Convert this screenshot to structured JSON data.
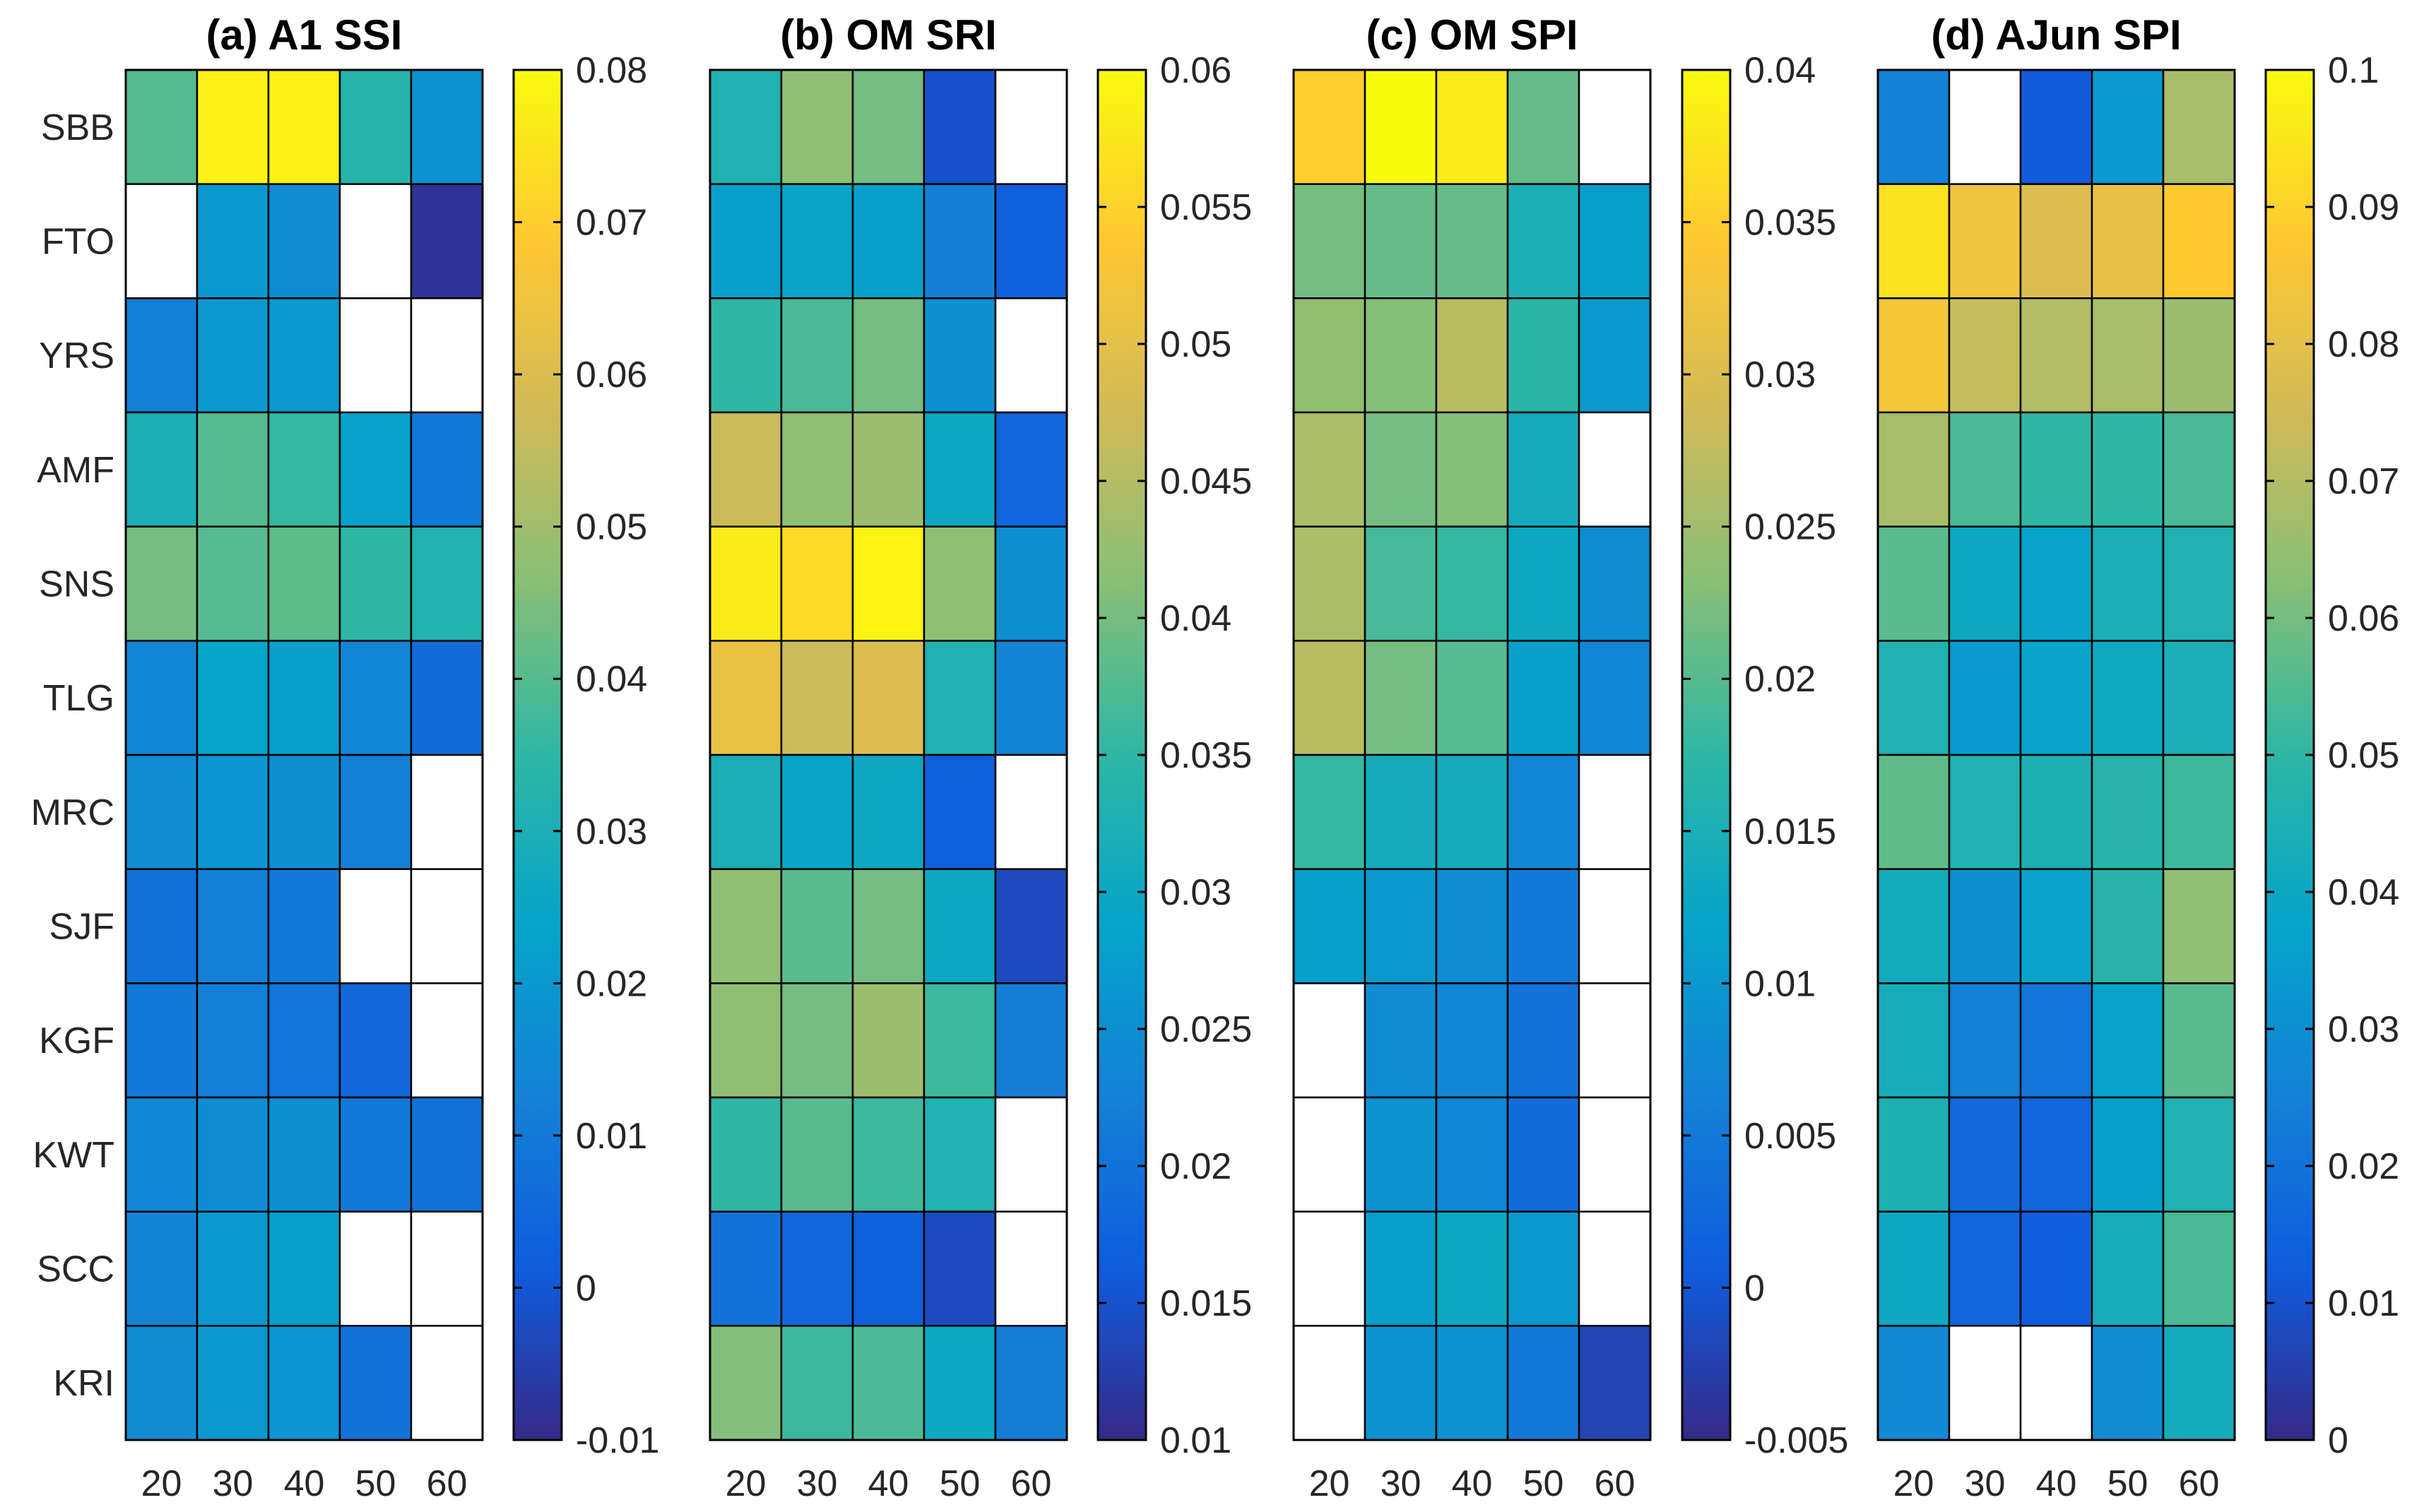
{
  "chart_data": [
    {
      "type": "heatmap",
      "title": "(a) A1 SSI",
      "xlabel": "",
      "ylabel": "",
      "columns": [
        "20",
        "30",
        "40",
        "50",
        "60"
      ],
      "rows": [
        "SBB",
        "FTO",
        "YRS",
        "AMF",
        "SNS",
        "TLG",
        "MRC",
        "SJF",
        "KGF",
        "KWT",
        "SCC",
        "KRI"
      ],
      "values": [
        [
          0.04,
          0.078,
          0.078,
          0.033,
          0.018
        ],
        [
          null,
          0.02,
          0.016,
          null,
          -0.008
        ],
        [
          0.012,
          0.02,
          0.02,
          null,
          null
        ],
        [
          0.03,
          0.04,
          0.036,
          0.023,
          0.01
        ],
        [
          0.044,
          0.04,
          0.041,
          0.035,
          0.032
        ],
        [
          0.014,
          0.024,
          0.022,
          0.014,
          0.006
        ],
        [
          0.016,
          0.019,
          0.017,
          0.012,
          null
        ],
        [
          0.008,
          0.012,
          0.01,
          null,
          null
        ],
        [
          0.01,
          0.012,
          0.009,
          0.005,
          null
        ],
        [
          0.014,
          0.016,
          0.017,
          0.01,
          0.008
        ],
        [
          0.013,
          0.02,
          0.022,
          null,
          null
        ],
        [
          0.016,
          0.02,
          0.019,
          0.008,
          null
        ]
      ],
      "colorbar": {
        "range": [
          -0.01,
          0.08
        ],
        "ticks": [
          -0.01,
          0,
          0.01,
          0.02,
          0.03,
          0.04,
          0.05,
          0.06,
          0.07,
          0.08
        ],
        "tick_labels": [
          "-0.01",
          "0",
          "0.01",
          "0.02",
          "0.03",
          "0.04",
          "0.05",
          "0.06",
          "0.07",
          "0.08"
        ]
      }
    },
    {
      "type": "heatmap",
      "title": "(b) OM SRI",
      "xlabel": "",
      "ylabel": "",
      "columns": [
        "20",
        "30",
        "40",
        "50",
        "60"
      ],
      "rows": [
        "SBB",
        "FTO",
        "YRS",
        "AMF",
        "SNS",
        "TLG",
        "MRC",
        "SJF",
        "KGF",
        "KWT",
        "SCC",
        "KRI"
      ],
      "values": [
        [
          0.033,
          0.042,
          0.04,
          0.015,
          null
        ],
        [
          0.028,
          0.029,
          0.028,
          0.022,
          0.017
        ],
        [
          0.035,
          0.037,
          0.04,
          0.025,
          null
        ],
        [
          0.047,
          0.042,
          0.043,
          0.03,
          0.018
        ],
        [
          0.058,
          0.056,
          0.059,
          0.042,
          0.025
        ],
        [
          0.051,
          0.047,
          0.049,
          0.033,
          0.023
        ],
        [
          0.032,
          0.029,
          0.03,
          0.017,
          null
        ],
        [
          0.042,
          0.038,
          0.04,
          0.03,
          0.014
        ],
        [
          0.042,
          0.04,
          0.043,
          0.036,
          0.022
        ],
        [
          0.035,
          0.038,
          0.036,
          0.033,
          null
        ],
        [
          0.02,
          0.018,
          0.017,
          0.014,
          null
        ],
        [
          0.041,
          0.036,
          0.037,
          0.03,
          0.022
        ]
      ],
      "colorbar": {
        "range": [
          0.01,
          0.06
        ],
        "ticks": [
          0.01,
          0.015,
          0.02,
          0.025,
          0.03,
          0.035,
          0.04,
          0.045,
          0.05,
          0.055,
          0.06
        ],
        "tick_labels": [
          "0.01",
          "0.015",
          "0.02",
          "0.025",
          "0.03",
          "0.035",
          "0.04",
          "0.045",
          "0.05",
          "0.055",
          "0.06"
        ]
      }
    },
    {
      "type": "heatmap",
      "title": "(c) OM SPI",
      "xlabel": "",
      "ylabel": "",
      "columns": [
        "20",
        "30",
        "40",
        "50",
        "60"
      ],
      "rows": [
        "SBB",
        "FTO",
        "YRS",
        "AMF",
        "SNS",
        "TLG",
        "MRC",
        "SJF",
        "KGF",
        "KWT",
        "SCC",
        "KRI"
      ],
      "values": [
        [
          0.035,
          0.04,
          0.038,
          0.021,
          null
        ],
        [
          0.022,
          0.021,
          0.021,
          0.015,
          0.011
        ],
        [
          0.024,
          0.023,
          0.027,
          0.017,
          0.01
        ],
        [
          0.026,
          0.022,
          0.023,
          0.014,
          null
        ],
        [
          0.026,
          0.019,
          0.018,
          0.013,
          0.008
        ],
        [
          0.027,
          0.022,
          0.02,
          0.011,
          0.007
        ],
        [
          0.018,
          0.014,
          0.014,
          0.007,
          null
        ],
        [
          0.011,
          0.01,
          0.008,
          0.005,
          null
        ],
        [
          null,
          0.008,
          0.007,
          0.004,
          null
        ],
        [
          null,
          0.009,
          0.007,
          0.003,
          null
        ],
        [
          null,
          0.011,
          0.013,
          0.01,
          null
        ],
        [
          null,
          0.009,
          0.009,
          0.005,
          -0.002
        ]
      ],
      "colorbar": {
        "range": [
          -0.005,
          0.04
        ],
        "ticks": [
          -0.005,
          0,
          0.005,
          0.01,
          0.015,
          0.02,
          0.025,
          0.03,
          0.035,
          0.04
        ],
        "tick_labels": [
          "-0.005",
          "0",
          "0.005",
          "0.01",
          "0.015",
          "0.02",
          "0.025",
          "0.03",
          "0.035",
          "0.04"
        ]
      }
    },
    {
      "type": "heatmap",
      "title": "(d) AJun SPI",
      "xlabel": "",
      "ylabel": "",
      "columns": [
        "20",
        "30",
        "40",
        "50",
        "60"
      ],
      "rows": [
        "SBB",
        "FTO",
        "YRS",
        "AMF",
        "SNS",
        "TLG",
        "MRC",
        "SJF",
        "KGF",
        "KWT",
        "SCC",
        "KRI"
      ],
      "values": [
        [
          0.025,
          null,
          0.012,
          0.034,
          0.068
        ],
        [
          0.094,
          0.083,
          0.078,
          0.081,
          0.088
        ],
        [
          0.085,
          0.073,
          0.07,
          0.068,
          0.066
        ],
        [
          0.068,
          0.054,
          0.05,
          0.05,
          0.054
        ],
        [
          0.056,
          0.04,
          0.037,
          0.044,
          0.046
        ],
        [
          0.046,
          0.034,
          0.037,
          0.041,
          0.044
        ],
        [
          0.057,
          0.046,
          0.045,
          0.048,
          0.052
        ],
        [
          0.042,
          0.03,
          0.037,
          0.048,
          0.064
        ],
        [
          0.043,
          0.025,
          0.021,
          0.037,
          0.056
        ],
        [
          0.045,
          0.017,
          0.016,
          0.035,
          0.046
        ],
        [
          0.04,
          0.016,
          0.013,
          0.043,
          0.054
        ],
        [
          0.028,
          null,
          null,
          0.029,
          0.042
        ]
      ],
      "colorbar": {
        "range": [
          0,
          0.1
        ],
        "ticks": [
          0,
          0.01,
          0.02,
          0.03,
          0.04,
          0.05,
          0.06,
          0.07,
          0.08,
          0.09,
          0.1
        ],
        "tick_labels": [
          "0",
          "0.01",
          "0.02",
          "0.03",
          "0.04",
          "0.05",
          "0.06",
          "0.07",
          "0.08",
          "0.09",
          "0.1"
        ]
      }
    }
  ],
  "colormap": {
    "name": "parula",
    "stops": [
      "#352a87",
      "#0f5cdd",
      "#1481d6",
      "#06a4ca",
      "#2eb7a4",
      "#87bf77",
      "#d1bb59",
      "#fec832",
      "#f9fb0e"
    ]
  },
  "missing_color": "#ffffff"
}
